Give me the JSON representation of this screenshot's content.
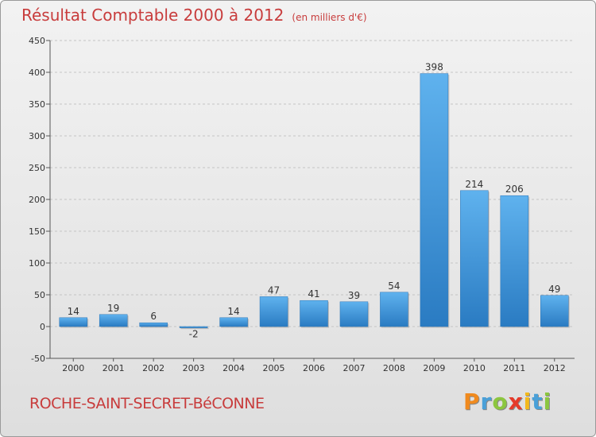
{
  "chart_data": {
    "type": "bar",
    "title": "Résultat Comptable 2000 à 2012",
    "subtitle": "(en milliers d'€)",
    "categories": [
      "2000",
      "2001",
      "2002",
      "2003",
      "2004",
      "2005",
      "2006",
      "2007",
      "2008",
      "2009",
      "2010",
      "2011",
      "2012"
    ],
    "values": [
      14,
      19,
      6,
      -2,
      14,
      47,
      41,
      39,
      54,
      398,
      214,
      206,
      49
    ],
    "ylim": [
      -50,
      450
    ],
    "yticks": [
      -50,
      0,
      50,
      100,
      150,
      200,
      250,
      300,
      350,
      400,
      450
    ],
    "xlabel": "",
    "ylabel": "",
    "grid": true,
    "bar_color": "#3a8fd6"
  },
  "footer": {
    "commune": "ROCHE-SAINT-SECRET-BéCONNE",
    "logo_letters": [
      "P",
      "r",
      "o",
      "x",
      "i",
      "t",
      "i"
    ],
    "logo_colors": [
      "#f08a1e",
      "#4aa0d8",
      "#8cc63f",
      "#e53a2a",
      "#f3b91c",
      "#4aa0d8",
      "#8cc63f"
    ]
  }
}
